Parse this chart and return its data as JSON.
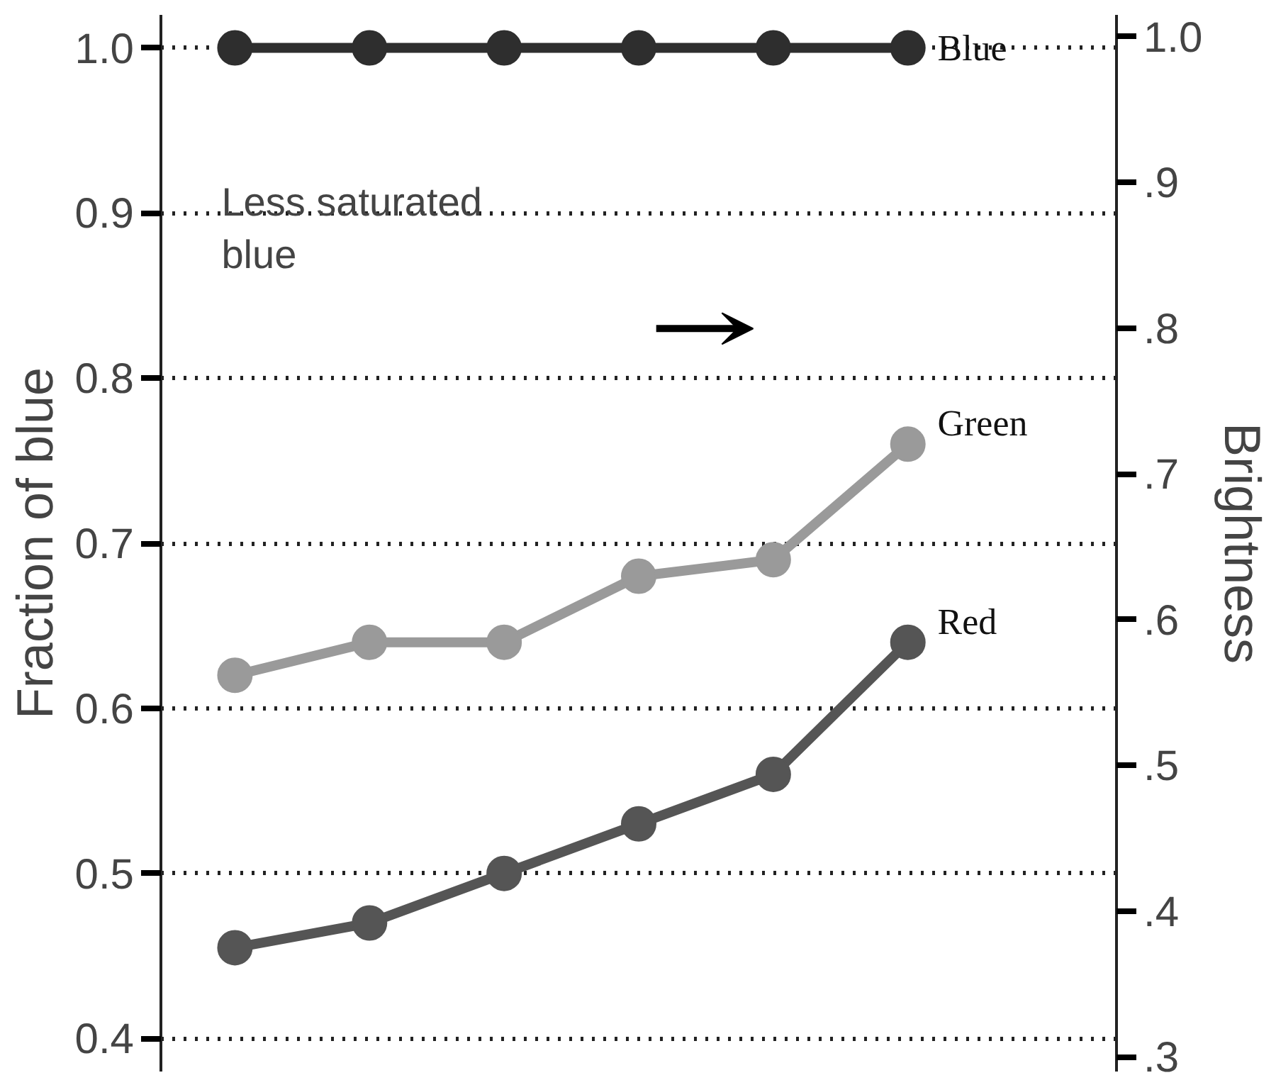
{
  "chart_data": {
    "type": "line",
    "ylabel": "Fraction of blue",
    "y2label": "Brightness",
    "categories": [
      null,
      null,
      null,
      null,
      null,
      null
    ],
    "series": [
      {
        "name": "Blue",
        "color": "#2e2e2e",
        "values": [
          1.0,
          1.0,
          1.0,
          1.0,
          1.0,
          1.0
        ]
      },
      {
        "name": "Green",
        "color": "#9a9a9a",
        "values": [
          0.62,
          0.64,
          0.64,
          0.68,
          0.69,
          0.76
        ]
      },
      {
        "name": "Red",
        "color": "#555555",
        "values": [
          0.455,
          0.47,
          0.5,
          0.53,
          0.56,
          0.64
        ]
      }
    ],
    "ylim": [
      0.38,
      1.02
    ],
    "yticks": [
      0.4,
      0.5,
      0.6,
      0.7,
      0.8,
      0.9,
      {
        "value": 1.0,
        "label": "1.0"
      }
    ],
    "y2lim": [
      0.29,
      1.015
    ],
    "y2ticks": [
      {
        "value": 0.3,
        "label": ".3"
      },
      {
        "value": 0.4,
        "label": ".4"
      },
      {
        "value": 0.5,
        "label": ".5"
      },
      {
        "value": 0.6,
        "label": ".6"
      },
      {
        "value": 0.7,
        "label": ".7"
      },
      {
        "value": 0.8,
        "label": ".8"
      },
      {
        "value": 0.9,
        "label": ".9"
      },
      {
        "value": 1.0,
        "label": "1.0"
      }
    ],
    "annotations": [
      "Less saturated blue"
    ],
    "grid": "y",
    "marker": "circle",
    "line_style": "solid"
  }
}
